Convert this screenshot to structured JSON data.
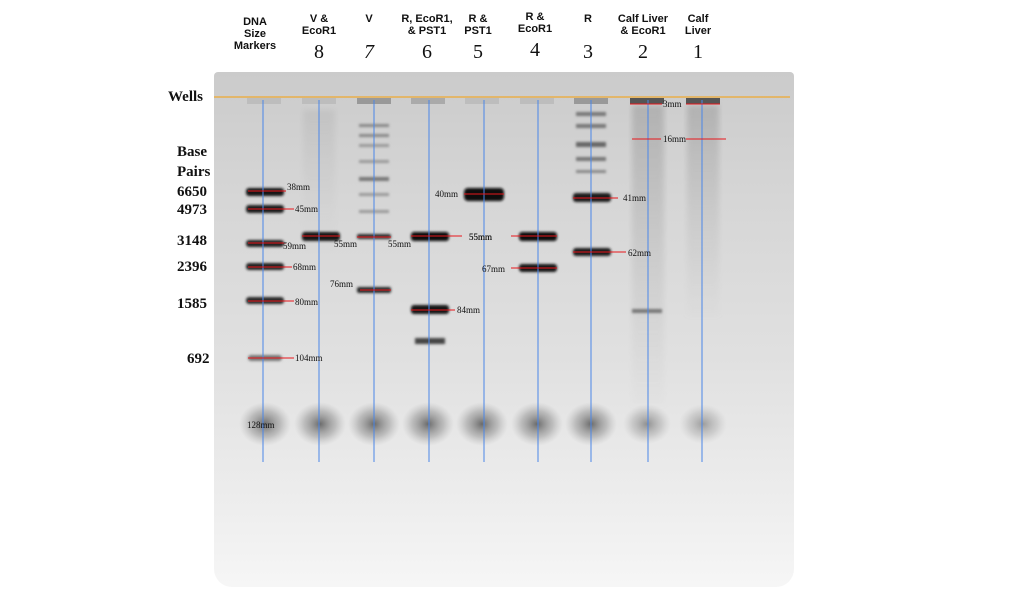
{
  "lanes": [
    {
      "key": "marker",
      "title_lines": [
        "DNA",
        "Size",
        "Markers"
      ],
      "number": ""
    },
    {
      "key": "lane8",
      "title_lines": [
        "V  &",
        "EcoR1"
      ],
      "number": "8"
    },
    {
      "key": "lane7",
      "title_lines": [
        "V"
      ],
      "number": "7"
    },
    {
      "key": "lane6",
      "title_lines": [
        "R, EcoR1,",
        "& PST1"
      ],
      "number": "6"
    },
    {
      "key": "lane5",
      "title_lines": [
        "R &",
        "PST1"
      ],
      "number": "5"
    },
    {
      "key": "lane4",
      "title_lines": [
        "R  &",
        "EcoR1"
      ],
      "number": "4"
    },
    {
      "key": "lane3",
      "title_lines": [
        "R"
      ],
      "number": "3"
    },
    {
      "key": "lane2",
      "title_lines": [
        "Calf Liver",
        "& EcoR1"
      ],
      "number": "2"
    },
    {
      "key": "lane1",
      "title_lines": [
        "Calf",
        "Liver"
      ],
      "number": "1"
    }
  ],
  "wells_label": "Wells",
  "base_pairs_label": [
    "Base",
    "Pairs"
  ],
  "base_pair_values": [
    "6650",
    "4973",
    "3148",
    "2396",
    "1585",
    "692"
  ],
  "band_measurements": [
    {
      "lane": "marker",
      "label": "38mm"
    },
    {
      "lane": "marker",
      "label": "45mm"
    },
    {
      "lane": "marker",
      "label": "59mm"
    },
    {
      "lane": "marker",
      "label": "68mm"
    },
    {
      "lane": "marker",
      "label": "80mm"
    },
    {
      "lane": "marker",
      "label": "104mm"
    },
    {
      "lane": "marker",
      "label": "128mm"
    },
    {
      "lane": "lane8",
      "label": "55mm"
    },
    {
      "lane": "lane7",
      "label": "55mm"
    },
    {
      "lane": "lane7",
      "label": "76mm"
    },
    {
      "lane": "lane6",
      "label": "55mm"
    },
    {
      "lane": "lane6",
      "label": "84mm"
    },
    {
      "lane": "lane5",
      "label": "40mm"
    },
    {
      "lane": "lane4",
      "label": "55mm"
    },
    {
      "lane": "lane4",
      "label": "67mm"
    },
    {
      "lane": "lane3",
      "label": "41mm"
    },
    {
      "lane": "lane3",
      "label": "62mm"
    },
    {
      "lane": "lane2",
      "label": "3mm"
    },
    {
      "lane": "lane1",
      "label": "16mm"
    }
  ],
  "colors": {
    "lane_line": "#4a86e8",
    "measure_line": "#e8161b",
    "wells_line": "#f0a830",
    "band": "#1a1a1a"
  }
}
